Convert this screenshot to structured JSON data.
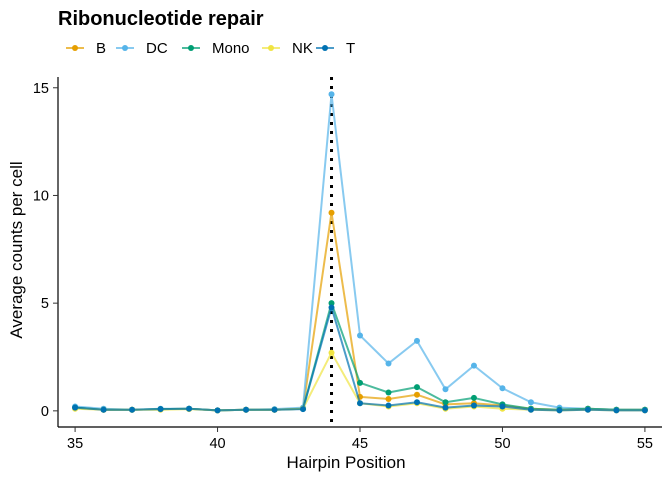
{
  "chart_data": {
    "type": "line",
    "title": "Ribonucleotide repair",
    "xlabel": "Hairpin Position",
    "ylabel": "Average counts per cell",
    "xlim": [
      34.4,
      55.6
    ],
    "ylim": [
      -0.75,
      15.5
    ],
    "x_ticks": [
      35,
      40,
      45,
      50,
      55
    ],
    "y_ticks": [
      0,
      5,
      10,
      15
    ],
    "grid": false,
    "legend_position": "top-left",
    "reference_line": {
      "x": 44,
      "style": "dotted"
    },
    "x": [
      35,
      36,
      37,
      38,
      39,
      40,
      41,
      42,
      43,
      44,
      45,
      46,
      47,
      48,
      49,
      50,
      51,
      52,
      53,
      54,
      55
    ],
    "series": [
      {
        "name": "B",
        "color": "#E69F00",
        "values": [
          0.15,
          0.05,
          0.05,
          0.08,
          0.1,
          0.02,
          0.05,
          0.05,
          0.1,
          9.2,
          0.65,
          0.55,
          0.75,
          0.3,
          0.35,
          0.25,
          0.1,
          0.05,
          0.1,
          0.05,
          0.05
        ]
      },
      {
        "name": "DC",
        "color": "#56B4E9",
        "values": [
          0.2,
          0.1,
          0.05,
          0.1,
          0.1,
          0.02,
          0.05,
          0.08,
          0.15,
          14.7,
          3.5,
          2.2,
          3.25,
          1.0,
          2.1,
          1.05,
          0.4,
          0.15,
          0.1,
          0.05,
          0.05
        ]
      },
      {
        "name": "Mono",
        "color": "#009E73",
        "values": [
          0.15,
          0.05,
          0.05,
          0.08,
          0.1,
          0.02,
          0.05,
          0.05,
          0.1,
          5.0,
          1.3,
          0.85,
          1.1,
          0.4,
          0.6,
          0.3,
          0.1,
          0.05,
          0.1,
          0.05,
          0.05
        ]
      },
      {
        "name": "NK",
        "color": "#F0E442",
        "values": [
          0.1,
          0.05,
          0.05,
          0.05,
          0.08,
          0.02,
          0.05,
          0.05,
          0.1,
          2.7,
          0.35,
          0.2,
          0.35,
          0.1,
          0.2,
          0.1,
          0.05,
          0.02,
          0.05,
          0.02,
          0.02
        ]
      },
      {
        "name": "T",
        "color": "#0072B2",
        "values": [
          0.15,
          0.05,
          0.05,
          0.08,
          0.1,
          0.02,
          0.05,
          0.05,
          0.08,
          4.8,
          0.35,
          0.25,
          0.4,
          0.15,
          0.25,
          0.2,
          0.05,
          0.02,
          0.05,
          0.02,
          0.02
        ]
      }
    ]
  }
}
